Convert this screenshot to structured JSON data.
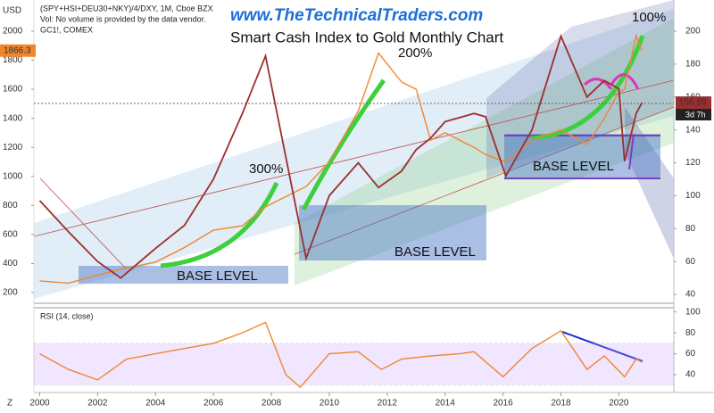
{
  "chart_data": [
    {
      "type": "line",
      "title": "Smart Cash Index to Gold Monthly Chart",
      "site": "www.TheTechnicalTraders.com",
      "header": [
        "(SPY+HSI+DEU30+NKY)/4/DXY, 1M, Cboe BZX",
        "Vol: No volume is provided by the data vendor.",
        "GC1!, COMEX"
      ],
      "currency": "USD",
      "countdown": "3d 7h",
      "annotations": [
        "100%",
        "200%",
        "300%",
        "BASE LEVEL",
        "BASE LEVEL",
        "BASE LEVEL"
      ],
      "x": [
        2000,
        2001,
        2002,
        2002.8,
        2004,
        2005,
        2006,
        2007,
        2007.8,
        2009.2,
        2010,
        2011,
        2011.7,
        2012.5,
        2013,
        2013.5,
        2014,
        2015,
        2015.4,
        2016.1,
        2017,
        2018,
        2018.9,
        2019.5,
        2020,
        2020.2,
        2020.6,
        2020.8
      ],
      "series": [
        {
          "name": "GC1!",
          "color": "#f0862f",
          "values": [
            280,
            265,
            320,
            360,
            410,
            510,
            630,
            660,
            790,
            930,
            1100,
            1450,
            1850,
            1650,
            1600,
            1250,
            1300,
            1200,
            1150,
            1100,
            1250,
            1320,
            1220,
            1400,
            1580,
            1600,
            1970,
            1866.3
          ]
        },
        {
          "name": "(SPY+HSI+DEU30+NKY)/4/DXY",
          "color": "#9b2f2f",
          "axis": "y2",
          "values": [
            97,
            78,
            60,
            50,
            68,
            82,
            110,
            150,
            185,
            62,
            100,
            120,
            105,
            115,
            128,
            135,
            145,
            150,
            148,
            112,
            140,
            197,
            160,
            170,
            165,
            121,
            150,
            156.59
          ]
        }
      ],
      "xlim": [
        1999.8,
        2021.9
      ],
      "xticks": [
        2000,
        2002,
        2004,
        2006,
        2008,
        2010,
        2012,
        2014,
        2016,
        2018,
        2020
      ],
      "ylim": [
        126,
        2215
      ],
      "yticks": [
        200,
        400,
        600,
        800,
        1000,
        1200,
        1400,
        1600,
        1800,
        2000
      ],
      "y2lim": [
        34.6,
        219
      ],
      "y2ticks": [
        40,
        60,
        80,
        100,
        120,
        140,
        160,
        180,
        200
      ]
    },
    {
      "type": "line",
      "title": "RSI (14, close)",
      "x": [
        2000,
        2001,
        2002,
        2003,
        2004,
        2005,
        2006,
        2007,
        2007.8,
        2008.5,
        2009,
        2010,
        2011,
        2011.8,
        2012.5,
        2013.5,
        2014.5,
        2015,
        2016,
        2017,
        2018,
        2018.9,
        2019.5,
        2020.2,
        2020.6,
        2020.8
      ],
      "series": [
        {
          "name": "RSI",
          "color": "#f0862f",
          "values": [
            60,
            45,
            35,
            55,
            60,
            65,
            70,
            80,
            90,
            40,
            28,
            60,
            62,
            45,
            55,
            58,
            60,
            62,
            38,
            65,
            82,
            45,
            58,
            38,
            55,
            52
          ]
        }
      ],
      "xlim": [
        1999.8,
        2021.9
      ],
      "ylim": [
        23,
        104
      ],
      "yticks": [
        40,
        60,
        80,
        100
      ],
      "band": [
        30,
        70
      ]
    }
  ]
}
